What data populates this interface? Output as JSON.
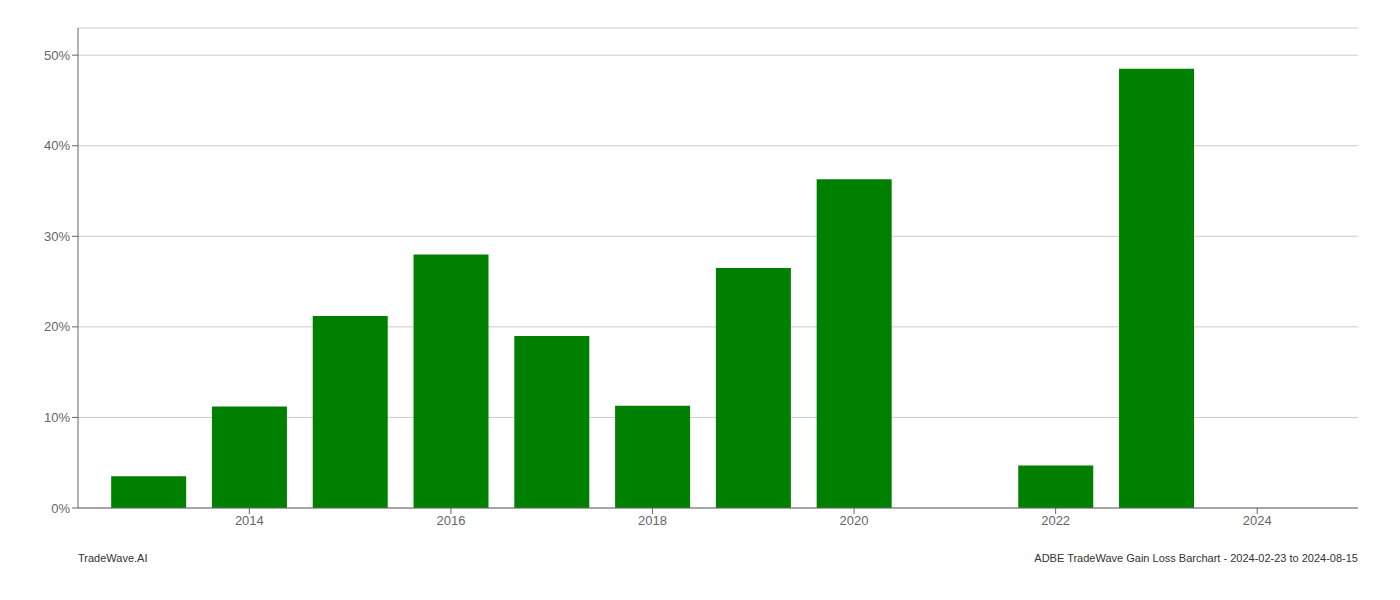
{
  "chart_data": {
    "type": "bar",
    "x": [
      2013,
      2014,
      2015,
      2016,
      2017,
      2018,
      2019,
      2020,
      2022,
      2023
    ],
    "values": [
      3.5,
      11.2,
      21.2,
      28.0,
      19.0,
      11.3,
      26.5,
      36.3,
      4.7,
      48.5
    ],
    "color": "#008000",
    "xlim": [
      2012.3,
      2025.0
    ],
    "xticks": [
      2014,
      2016,
      2018,
      2020,
      2022,
      2024
    ],
    "ylim": [
      0,
      53
    ],
    "yticks": [
      {
        "value": 0,
        "label": "0%"
      },
      {
        "value": 10,
        "label": "10%"
      },
      {
        "value": 20,
        "label": "20%"
      },
      {
        "value": 30,
        "label": "30%"
      },
      {
        "value": 40,
        "label": "40%"
      },
      {
        "value": 50,
        "label": "50%"
      }
    ],
    "grid": true,
    "annotations": [
      "TradeWave.AI",
      "ADBE TradeWave Gain Loss Barchart - 2024-02-23 to 2024-08-15"
    ]
  }
}
